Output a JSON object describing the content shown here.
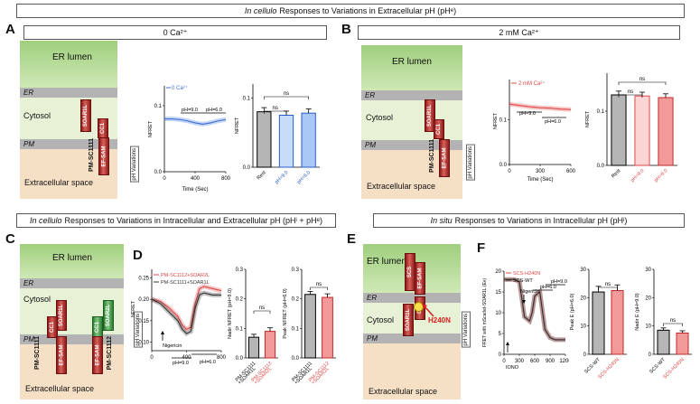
{
  "header_top": {
    "italic": "In cellulo",
    "rest": "Responses to Variations in Extracellular pH (pH"
  },
  "header_c": {
    "italic": "In cellulo",
    "rest": "Responses to Variations in Intracellular and Extracellular pH (pH"
  },
  "header_e": {
    "italic": "In situ",
    "rest": "Responses to Variations in Intracellular pH (pH"
  },
  "header_subs": {
    "e": "e",
    "ie_i": "i",
    "ie_e": "e",
    "i": "i"
  },
  "panel_letters": [
    "A",
    "B",
    "C",
    "D",
    "E",
    "F"
  ],
  "panelA": {
    "condition": "0 Ca²⁺",
    "legend": "0 Ca²⁺",
    "ylabel": "NFRET",
    "xlabel": "Time (Sec)",
    "ph1": "pH=9.0",
    "ph2": "pH=6.0",
    "xticks": [
      "0",
      "400",
      "800"
    ],
    "yticks": [
      "0.0",
      "0.1"
    ],
    "bar_ylabel": "NFRET",
    "ns1": "ns",
    "ns2": "ns",
    "bar_cats": [
      "Rest",
      "pH=9.0",
      "pH=6.0"
    ]
  },
  "panelB": {
    "condition": "2 mM Ca²⁺",
    "legend": "2 mM Ca²⁺",
    "ylabel": "NFRET",
    "xlabel": "Time (Sec)",
    "ph1": "pH=9.0",
    "ph2": "pH=6.0",
    "xticks": [
      "0",
      "300",
      "600"
    ],
    "yticks": [
      "0.0",
      "0.1"
    ],
    "bar_ylabel": "NFRET",
    "ns1": "ns",
    "ns2": "ns",
    "bar_cats": [
      "Rest",
      "pH=9.0",
      "pH=6.0"
    ]
  },
  "cells": {
    "er_lumen": "ER lumen",
    "er": "ER",
    "cytosol": "Cytosol",
    "pm": "PM",
    "extracellular": "Extracellular space",
    "ph_variations": "pH Variations",
    "soar1l": "SOAR1L",
    "cc1": "CC1",
    "pm_sc1111": "PM-SC1111",
    "ef_sam": "EF-SAM",
    "soar2l": "SOAR2L",
    "pm_sc1112": "PM-SC1112",
    "scs": "SCS",
    "h240n": "H240N"
  },
  "panelD": {
    "leg1": "PM-SC1112+SOAR2L",
    "leg2": "PM-SC1111+SOAR1L",
    "ylabel": "NFRET",
    "yticks": [
      "0.10",
      "0.15",
      "0.20",
      "0.25"
    ],
    "xticks": [
      "0",
      "400",
      "800"
    ],
    "nigericin": "Nigericin",
    "ph1": "pH=9.0",
    "ph2": "pH=6.0",
    "bar1_ylabel": "Nadir NFRET (pH=9.0)",
    "bar2_ylabel": "Peak NFRET (pH=6.0)",
    "bar1_yticks": [
      "0.0",
      "0.1",
      "0.2",
      "0.3"
    ],
    "bar2_yticks": [
      "0.0",
      "0.1",
      "0.2",
      "0.3"
    ],
    "ns1": "ns",
    "ns2": "ns",
    "cat1": "PM-SC1111\n+SOAR1L",
    "cat2": "PM-SC1112\n+SOAR2L"
  },
  "panelF": {
    "leg1": "SCS-H240N",
    "leg2": "SCS-WT",
    "ylabel": "FRET with mScarlet-SOAR1L (E",
    "yticks": [
      "0",
      "5",
      "10",
      "15",
      "20"
    ],
    "xticks": [
      "0",
      "300",
      "600",
      "900",
      "1200"
    ],
    "nigericin": "Nigericin",
    "iono": "IONO",
    "ph1": "pH=6.0",
    "ph2": "pH=9.0",
    "bar1_ylabel": "Peak E",
    "bar2_ylabel": "Nadir E",
    "bar1_yticks": [
      "0",
      "10",
      "20",
      "30"
    ],
    "bar2_yticks": [
      "0",
      "10",
      "20",
      "30"
    ],
    "ns1": "ns",
    "ns2": "ns",
    "cat1": "SCS-WT",
    "cat2": "SCS-H240N",
    "bar1_sub": "(pH=6.0)",
    "bar2_sub": "(pH=9.0)"
  },
  "chart_data": [
    {
      "type": "line",
      "panel": "A",
      "series": [
        {
          "name": "0 Ca²⁺",
          "color": "#3b6fd6",
          "x": [
            0,
            100,
            200,
            300,
            400,
            500,
            600,
            700,
            800
          ],
          "y": [
            0.08,
            0.08,
            0.079,
            0.077,
            0.074,
            0.072,
            0.074,
            0.077,
            0.079
          ]
        }
      ],
      "xlim": [
        0,
        800
      ],
      "ylim": [
        0,
        0.13
      ]
    },
    {
      "type": "bar",
      "panel": "A",
      "categories": [
        "Rest",
        "pH=9.0",
        "pH=6.0"
      ],
      "values": [
        0.08,
        0.075,
        0.078
      ],
      "errors": [
        0.006,
        0.006,
        0.006
      ],
      "ylim": [
        0,
        0.12
      ]
    },
    {
      "type": "line",
      "panel": "B",
      "series": [
        {
          "name": "2 mM Ca²⁺",
          "color": "#e04848",
          "x": [
            0,
            100,
            200,
            300,
            400,
            500,
            600
          ],
          "y": [
            0.135,
            0.132,
            0.129,
            0.127,
            0.126,
            0.124,
            0.123
          ]
        }
      ],
      "xlim": [
        0,
        600
      ],
      "ylim": [
        0,
        0.19
      ]
    },
    {
      "type": "bar",
      "panel": "B",
      "categories": [
        "Rest",
        "pH=9.0",
        "pH=6.0"
      ],
      "values": [
        0.13,
        0.128,
        0.125
      ],
      "errors": [
        0.007,
        0.007,
        0.007
      ],
      "ylim": [
        0,
        0.17
      ]
    },
    {
      "type": "line",
      "panel": "D",
      "series": [
        {
          "name": "PM-SC1112+SOAR2L",
          "color": "#e04848",
          "x": [
            0,
            100,
            200,
            300,
            350,
            400,
            450,
            500,
            550,
            600,
            700,
            800
          ],
          "y": [
            0.2,
            0.195,
            0.18,
            0.16,
            0.14,
            0.13,
            0.135,
            0.19,
            0.225,
            0.23,
            0.225,
            0.22
          ]
        },
        {
          "name": "PM-SC1111+SOAR1L",
          "color": "#333333",
          "x": [
            0,
            100,
            200,
            300,
            350,
            400,
            450,
            500,
            550,
            600,
            700,
            800
          ],
          "y": [
            0.2,
            0.19,
            0.17,
            0.15,
            0.13,
            0.12,
            0.125,
            0.18,
            0.21,
            0.215,
            0.21,
            0.21
          ]
        }
      ],
      "xlim": [
        0,
        800
      ],
      "ylim": [
        0.08,
        0.27
      ]
    },
    {
      "type": "bar",
      "panel": "D",
      "categories": [
        "PM-SC1111+SOAR1L",
        "PM-SC1112+SOAR2L"
      ],
      "values": [
        0.07,
        0.09
      ],
      "errors": [
        0.01,
        0.012
      ],
      "ylim": [
        0,
        0.3
      ]
    },
    {
      "type": "bar",
      "panel": "D",
      "categories": [
        "PM-SC1111+SOAR1L",
        "PM-SC1112+SOAR2L"
      ],
      "values": [
        0.215,
        0.205
      ],
      "errors": [
        0.01,
        0.012
      ],
      "ylim": [
        0,
        0.3
      ]
    },
    {
      "type": "line",
      "panel": "F",
      "series": [
        {
          "name": "SCS-H240N",
          "color": "#e04848",
          "x": [
            0,
            100,
            200,
            300,
            400,
            500,
            550,
            600,
            700,
            800,
            900,
            1000,
            1100,
            1200
          ],
          "y": [
            18,
            18,
            18,
            17.5,
            9,
            8,
            10,
            14,
            15,
            6,
            4,
            3.5,
            3.5,
            3.5
          ]
        },
        {
          "name": "SCS-WT",
          "color": "#333333",
          "x": [
            0,
            100,
            200,
            300,
            400,
            500,
            550,
            600,
            700,
            800,
            900,
            1000,
            1100,
            1200
          ],
          "y": [
            18,
            18,
            18,
            17.5,
            9,
            8,
            10,
            14,
            15,
            6,
            4,
            3.5,
            3.5,
            3.5
          ]
        }
      ],
      "xlim": [
        0,
        1200
      ],
      "ylim": [
        0,
        20
      ]
    },
    {
      "type": "bar",
      "panel": "F",
      "categories": [
        "SCS-WT",
        "SCS-H240N"
      ],
      "values": [
        22,
        22.5
      ],
      "errors": [
        2,
        2
      ],
      "ylim": [
        0,
        30
      ]
    },
    {
      "type": "bar",
      "panel": "F",
      "categories": [
        "SCS-WT",
        "SCS-H240N"
      ],
      "values": [
        8.5,
        7.5
      ],
      "errors": [
        0.8,
        0.8
      ],
      "ylim": [
        0,
        30
      ]
    }
  ]
}
